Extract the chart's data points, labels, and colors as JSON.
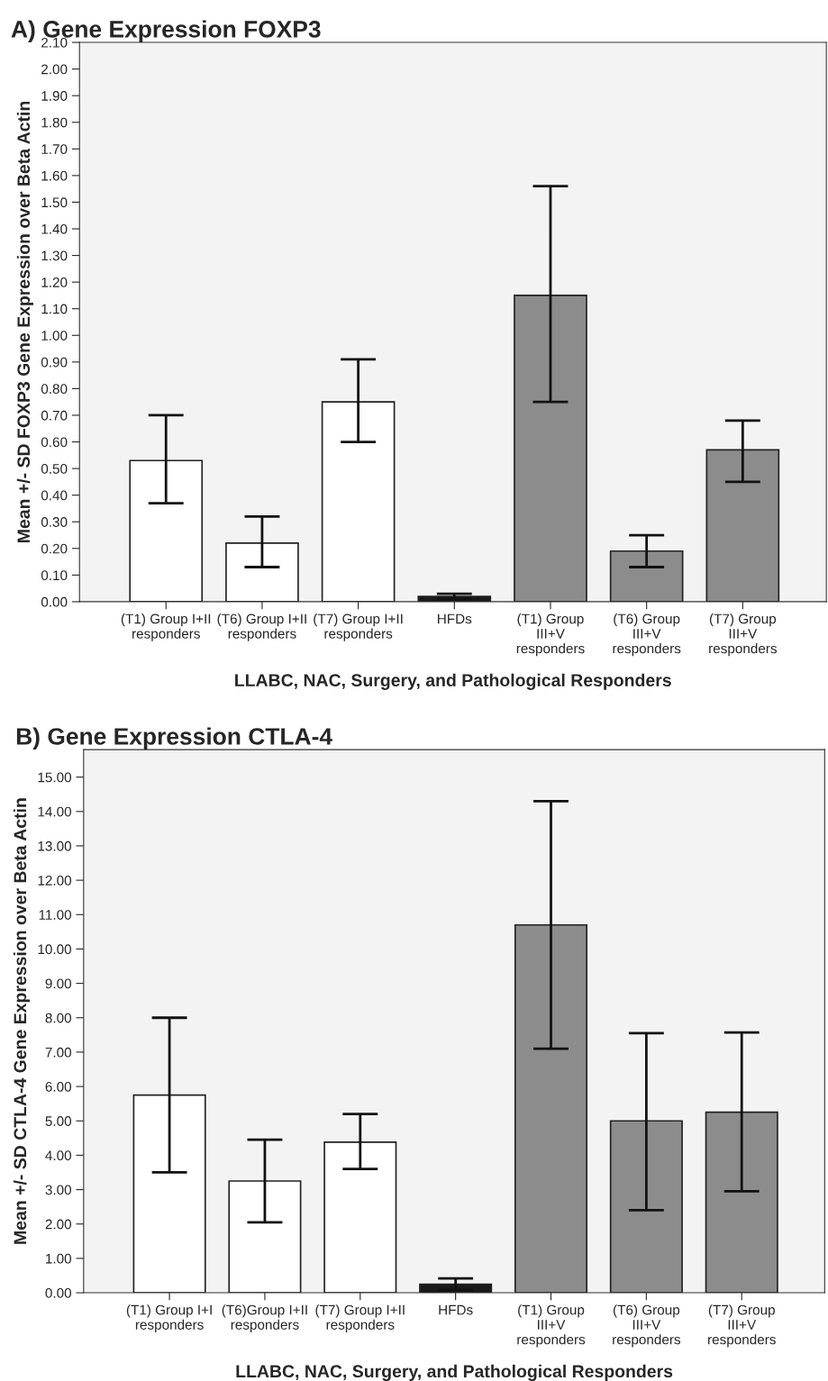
{
  "chart_data": [
    {
      "type": "bar",
      "title": "A) Gene Expression FOXP3",
      "xlabel": "LLABC, NAC, Surgery, and Pathological Responders",
      "ylabel": "Mean +/- SD FOXP3 Gene Expression over Beta Actin",
      "categories": [
        "(T1) Group I+II\nresponders",
        "(T6) Group I+II\nresponders",
        "(T7) Group I+II\nresponders",
        "HFDs",
        "(T1) Group\nIII+V\nresponders",
        "(T6) Group\nIII+V\nresponders",
        "(T7) Group\nIII+V\nresponders"
      ],
      "values": [
        0.53,
        0.22,
        0.75,
        0.02,
        1.15,
        0.19,
        0.57
      ],
      "errors": [
        [
          0.37,
          0.7
        ],
        [
          0.13,
          0.32
        ],
        [
          0.6,
          0.91
        ],
        [
          0.01,
          0.03
        ],
        [
          0.75,
          1.56
        ],
        [
          0.13,
          0.25
        ],
        [
          0.45,
          0.68
        ]
      ],
      "colors": [
        "#ffffff",
        "#ffffff",
        "#ffffff",
        "#1a1a1a",
        "#8c8c8c",
        "#8c8c8c",
        "#8c8c8c"
      ],
      "ylim": [
        0,
        2.1
      ],
      "yticks": [
        {
          "value": 0,
          "label": "0.00"
        },
        {
          "value": 0.1,
          "label": "0.10"
        },
        {
          "value": 0.2,
          "label": "0.20"
        },
        {
          "value": 0.3,
          "label": "0.30"
        },
        {
          "value": 0.4,
          "label": "0.40"
        },
        {
          "value": 0.5,
          "label": "0.50"
        },
        {
          "value": 0.6,
          "label": "0.60"
        },
        {
          "value": 0.7,
          "label": "0.70"
        },
        {
          "value": 0.8,
          "label": "0.80"
        },
        {
          "value": 0.9,
          "label": "0.90"
        },
        {
          "value": 1.0,
          "label": "1.00"
        },
        {
          "value": 1.1,
          "label": "1.10"
        },
        {
          "value": 1.2,
          "label": "1.20"
        },
        {
          "value": 1.3,
          "label": "1.30"
        },
        {
          "value": 1.4,
          "label": "1.40"
        },
        {
          "value": 1.5,
          "label": "1.50"
        },
        {
          "value": 1.6,
          "label": "1.60"
        },
        {
          "value": 1.7,
          "label": "1.70"
        },
        {
          "value": 1.8,
          "label": "1.80"
        },
        {
          "value": 1.9,
          "label": "1.90"
        },
        {
          "value": 2.0,
          "label": "2.00"
        },
        {
          "value": 2.1,
          "label": "2.10"
        }
      ],
      "grid": false,
      "legend": false
    },
    {
      "type": "bar",
      "title": "B) Gene Expression CTLA-4",
      "xlabel": "LLABC, NAC, Surgery, and Pathological Responders",
      "ylabel": "Mean +/- SD CTLA-4 Gene Expression over Beta Actin",
      "categories": [
        "(T1) Group I+I\nresponders",
        "(T6)Group I+II\nresponders",
        "(T7) Group I+II\nresponders",
        "HFDs",
        "(T1) Group\nIII+V\nresponders",
        "(T6) Group\nIII+V\nresponders",
        "(T7) Group\nIII+V\nresponders"
      ],
      "values": [
        5.75,
        3.25,
        4.38,
        0.25,
        10.7,
        5.0,
        5.25
      ],
      "errors": [
        [
          3.5,
          8.0
        ],
        [
          2.05,
          4.45
        ],
        [
          3.6,
          5.2
        ],
        [
          0.08,
          0.42
        ],
        [
          7.1,
          14.3
        ],
        [
          2.4,
          7.55
        ],
        [
          2.95,
          7.57
        ]
      ],
      "colors": [
        "#ffffff",
        "#ffffff",
        "#ffffff",
        "#1a1a1a",
        "#8c8c8c",
        "#8c8c8c",
        "#8c8c8c"
      ],
      "ylim": [
        0,
        15.8
      ],
      "yticks": [
        {
          "value": 0,
          "label": "0.00"
        },
        {
          "value": 1,
          "label": "1.00"
        },
        {
          "value": 2,
          "label": "2.00"
        },
        {
          "value": 3,
          "label": "3.00"
        },
        {
          "value": 4,
          "label": "4.00"
        },
        {
          "value": 5,
          "label": "5.00"
        },
        {
          "value": 6,
          "label": "6.00"
        },
        {
          "value": 7,
          "label": "7.00"
        },
        {
          "value": 8,
          "label": "8.00"
        },
        {
          "value": 9,
          "label": "9.00"
        },
        {
          "value": 10,
          "label": "10.00"
        },
        {
          "value": 11,
          "label": "11.00"
        },
        {
          "value": 12,
          "label": "12.00"
        },
        {
          "value": 13,
          "label": "13.00"
        },
        {
          "value": 14,
          "label": "14.00"
        },
        {
          "value": 15,
          "label": "15.00"
        }
      ],
      "grid": false,
      "legend": false
    }
  ]
}
